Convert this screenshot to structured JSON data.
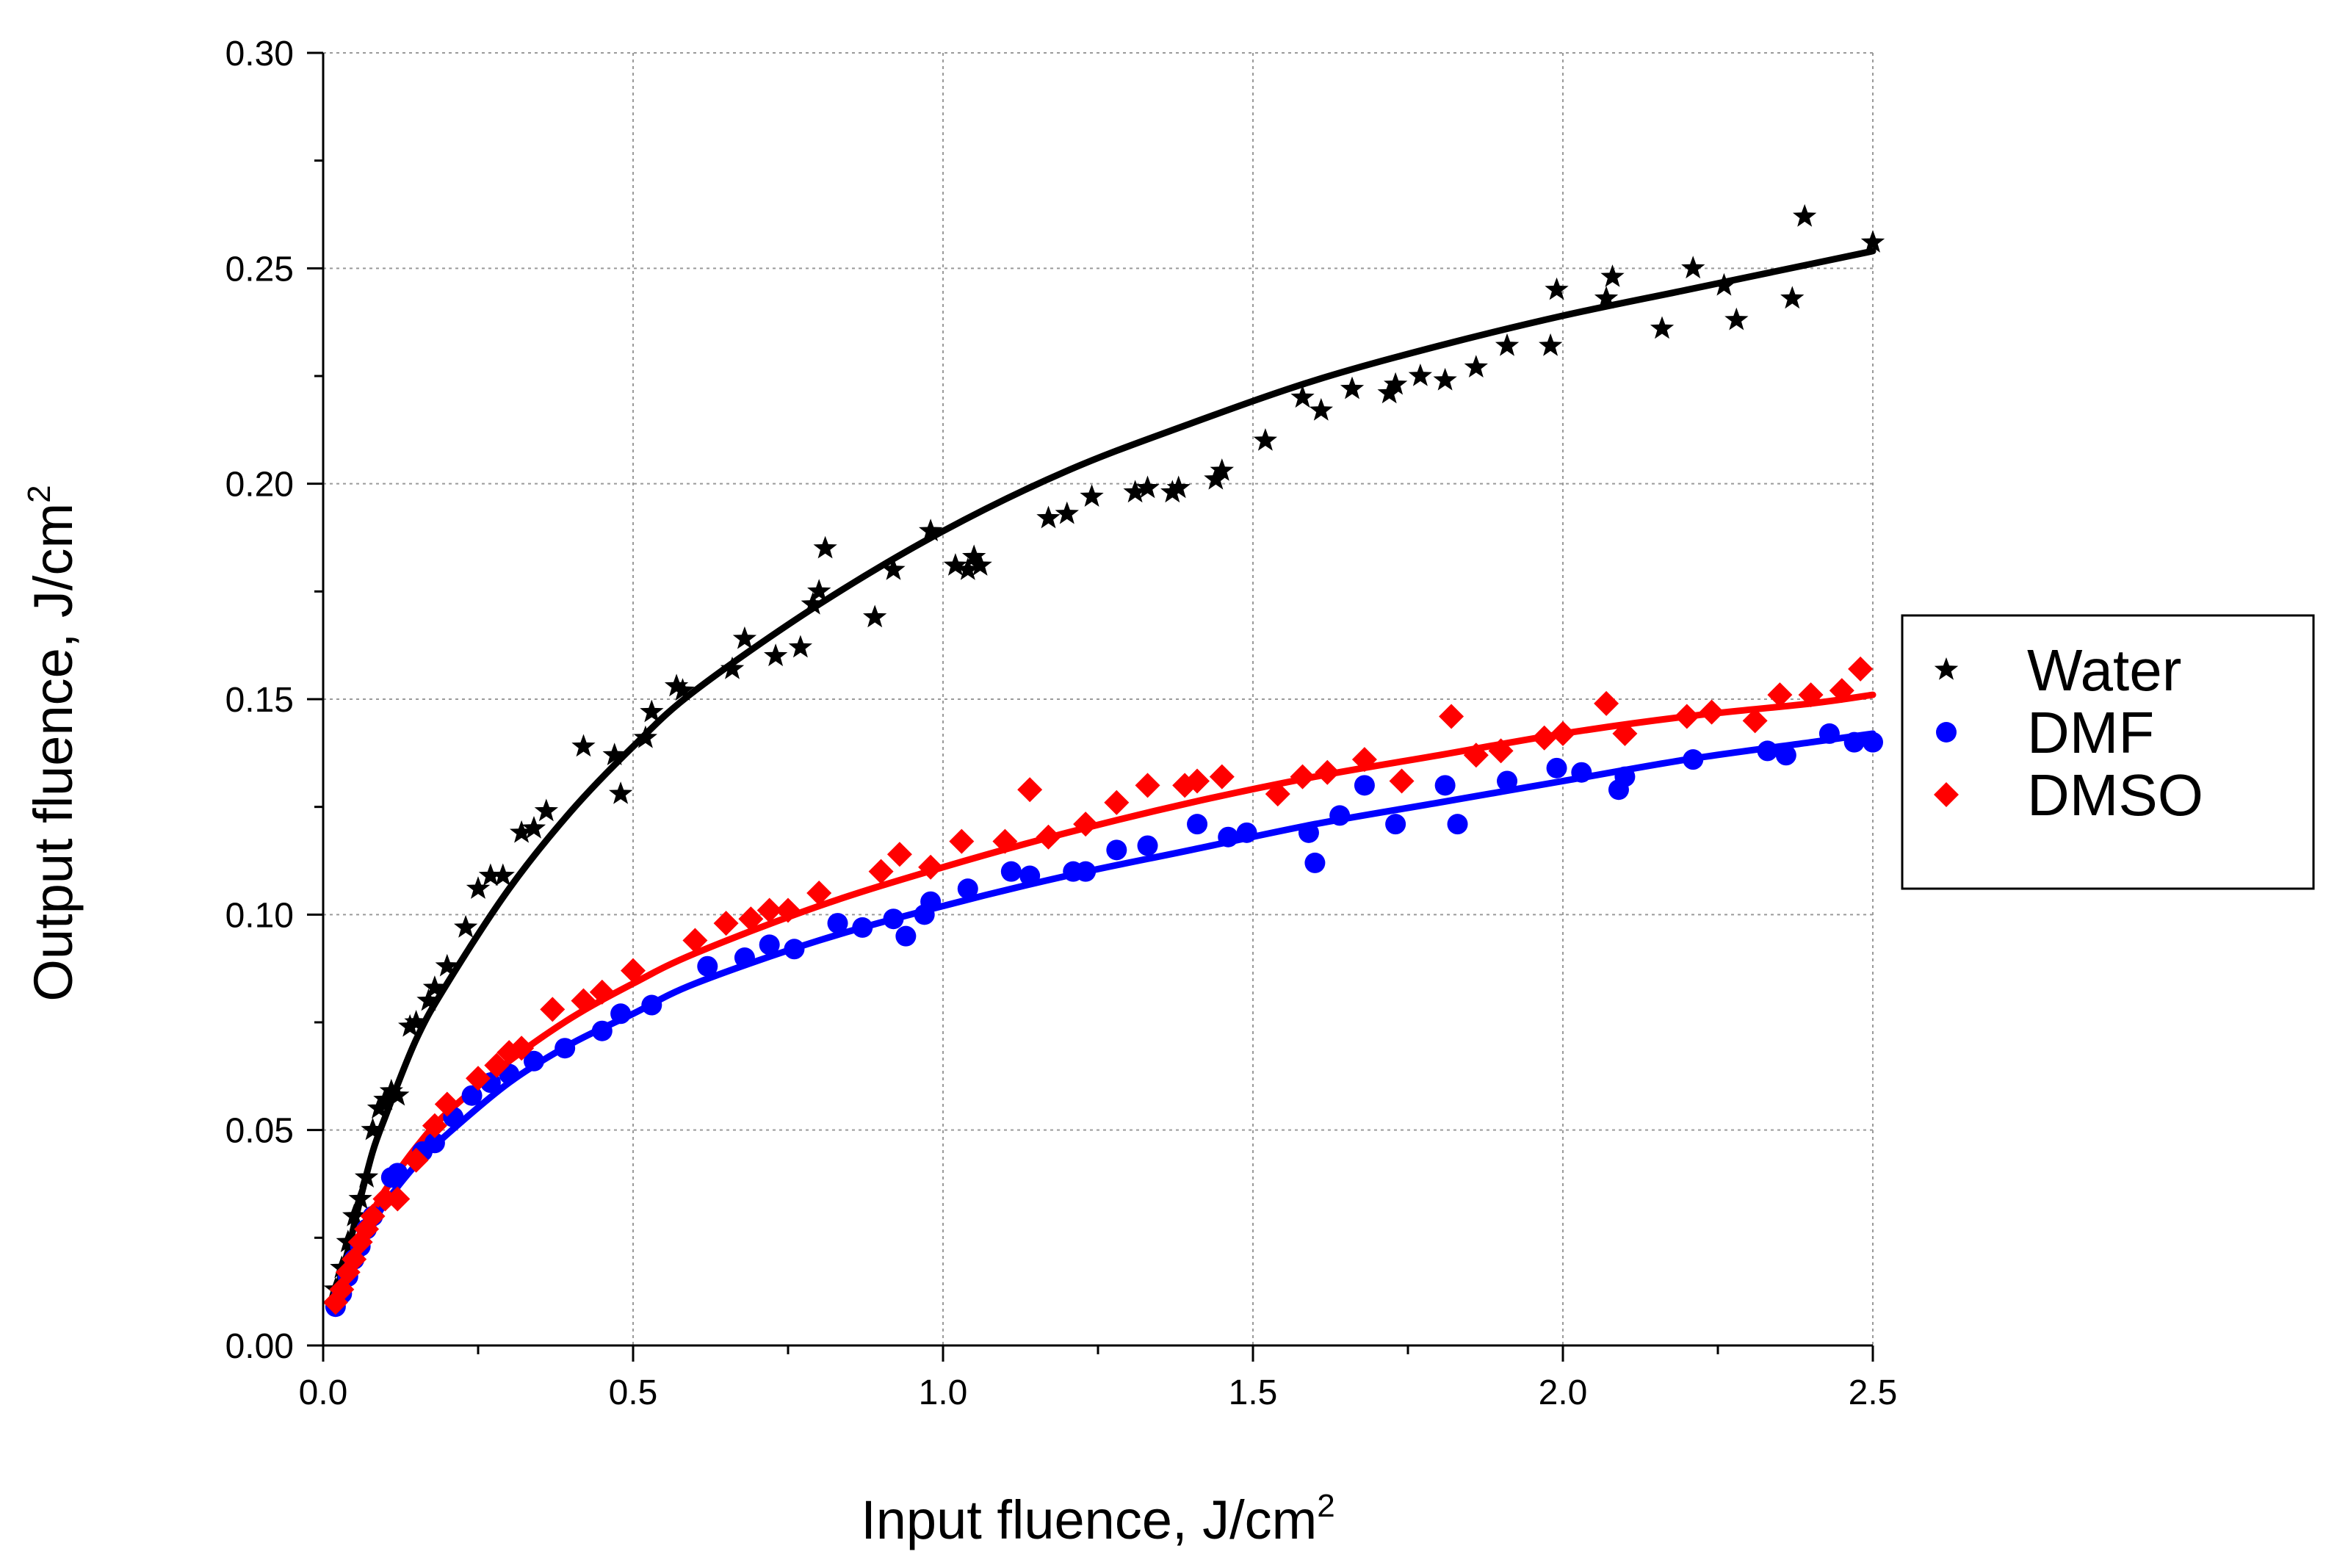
{
  "chart_data": {
    "type": "scatter",
    "xlabel": "Input fluence, J/cm",
    "xlabel_sup": "2",
    "ylabel": "Output fluence,  J/cm",
    "ylabel_sup": "2",
    "xlim": [
      0,
      2.5
    ],
    "ylim": [
      0,
      0.3
    ],
    "x_ticks": [
      "0.0",
      "0.5",
      "1.0",
      "1.5",
      "2.0",
      "2.5"
    ],
    "y_ticks": [
      "0.00",
      "0.05",
      "0.10",
      "0.15",
      "0.20",
      "0.25",
      "0.30"
    ],
    "grid": true,
    "legend_position": "right",
    "series": [
      {
        "name": "Water",
        "marker": "star",
        "color": "#000000",
        "fit": "power",
        "x": [
          0.02,
          0.03,
          0.04,
          0.05,
          0.06,
          0.07,
          0.08,
          0.09,
          0.1,
          0.11,
          0.12,
          0.14,
          0.15,
          0.17,
          0.18,
          0.2,
          0.23,
          0.25,
          0.27,
          0.29,
          0.32,
          0.34,
          0.36,
          0.42,
          0.47,
          0.48,
          0.52,
          0.53,
          0.57,
          0.58,
          0.66,
          0.68,
          0.73,
          0.77,
          0.79,
          0.8,
          0.81,
          0.89,
          0.92,
          0.98,
          1.02,
          1.04,
          1.05,
          1.06,
          1.17,
          1.2,
          1.24,
          1.31,
          1.33,
          1.37,
          1.38,
          1.44,
          1.45,
          1.52,
          1.58,
          1.61,
          1.66,
          1.72,
          1.73,
          1.77,
          1.81,
          1.86,
          1.91,
          1.98,
          1.99,
          2.07,
          2.08,
          2.16,
          2.21,
          2.26,
          2.28,
          2.37,
          2.39,
          2.5
        ],
        "y": [
          0.013,
          0.018,
          0.024,
          0.03,
          0.034,
          0.039,
          0.05,
          0.055,
          0.057,
          0.059,
          0.058,
          0.074,
          0.075,
          0.08,
          0.083,
          0.088,
          0.097,
          0.106,
          0.109,
          0.109,
          0.119,
          0.12,
          0.124,
          0.139,
          0.137,
          0.128,
          0.141,
          0.147,
          0.153,
          0.152,
          0.157,
          0.164,
          0.16,
          0.162,
          0.172,
          0.175,
          0.185,
          0.169,
          0.18,
          0.189,
          0.181,
          0.18,
          0.183,
          0.181,
          0.192,
          0.193,
          0.197,
          0.198,
          0.199,
          0.198,
          0.199,
          0.201,
          0.203,
          0.21,
          0.22,
          0.217,
          0.222,
          0.221,
          0.223,
          0.225,
          0.224,
          0.227,
          0.232,
          0.232,
          0.245,
          0.243,
          0.248,
          0.236,
          0.25,
          0.246,
          0.238,
          0.243,
          0.262,
          0.256
        ],
        "fit_x": [
          0.02,
          0.04,
          0.06,
          0.08,
          0.1,
          0.15,
          0.2,
          0.3,
          0.4,
          0.5,
          0.6,
          0.8,
          1.0,
          1.2,
          1.4,
          1.6,
          1.8,
          2.0,
          2.2,
          2.4,
          2.5
        ],
        "fit_y": [
          0.012,
          0.022,
          0.034,
          0.045,
          0.053,
          0.071,
          0.084,
          0.106,
          0.124,
          0.139,
          0.152,
          0.172,
          0.189,
          0.203,
          0.214,
          0.224,
          0.232,
          0.239,
          0.245,
          0.251,
          0.254
        ]
      },
      {
        "name": "DMF",
        "marker": "circle",
        "color": "#0000ff",
        "fit": "power",
        "x": [
          0.02,
          0.03,
          0.04,
          0.05,
          0.06,
          0.07,
          0.08,
          0.11,
          0.12,
          0.16,
          0.18,
          0.21,
          0.24,
          0.27,
          0.3,
          0.34,
          0.39,
          0.45,
          0.48,
          0.53,
          0.62,
          0.68,
          0.72,
          0.76,
          0.83,
          0.87,
          0.92,
          0.94,
          0.97,
          0.98,
          1.04,
          1.11,
          1.14,
          1.21,
          1.23,
          1.28,
          1.33,
          1.41,
          1.46,
          1.49,
          1.59,
          1.6,
          1.64,
          1.68,
          1.73,
          1.81,
          1.83,
          1.91,
          1.99,
          2.03,
          2.09,
          2.1,
          2.21,
          2.33,
          2.36,
          2.43,
          2.47,
          2.5
        ],
        "y": [
          0.009,
          0.012,
          0.016,
          0.02,
          0.023,
          0.027,
          0.03,
          0.039,
          0.04,
          0.045,
          0.047,
          0.053,
          0.058,
          0.061,
          0.063,
          0.066,
          0.069,
          0.073,
          0.077,
          0.079,
          0.088,
          0.09,
          0.093,
          0.092,
          0.098,
          0.097,
          0.099,
          0.095,
          0.1,
          0.103,
          0.106,
          0.11,
          0.109,
          0.11,
          0.11,
          0.115,
          0.116,
          0.121,
          0.118,
          0.119,
          0.119,
          0.112,
          0.123,
          0.13,
          0.121,
          0.13,
          0.121,
          0.131,
          0.134,
          0.133,
          0.129,
          0.132,
          0.136,
          0.138,
          0.137,
          0.142,
          0.14,
          0.14
        ],
        "fit_x": [
          0.02,
          0.04,
          0.06,
          0.08,
          0.1,
          0.15,
          0.2,
          0.3,
          0.4,
          0.5,
          0.6,
          0.8,
          1.0,
          1.2,
          1.4,
          1.6,
          1.8,
          2.0,
          2.2,
          2.4,
          2.5
        ],
        "fit_y": [
          0.01,
          0.016,
          0.022,
          0.028,
          0.033,
          0.042,
          0.049,
          0.061,
          0.07,
          0.077,
          0.084,
          0.094,
          0.102,
          0.109,
          0.115,
          0.121,
          0.126,
          0.131,
          0.136,
          0.14,
          0.142
        ]
      },
      {
        "name": "DMSO",
        "marker": "diamond",
        "color": "#ff0000",
        "fit": "power",
        "x": [
          0.02,
          0.03,
          0.04,
          0.05,
          0.06,
          0.07,
          0.08,
          0.1,
          0.12,
          0.15,
          0.18,
          0.2,
          0.25,
          0.28,
          0.3,
          0.32,
          0.37,
          0.42,
          0.45,
          0.5,
          0.6,
          0.65,
          0.69,
          0.72,
          0.75,
          0.8,
          0.9,
          0.93,
          0.98,
          1.03,
          1.1,
          1.14,
          1.17,
          1.23,
          1.28,
          1.33,
          1.39,
          1.41,
          1.45,
          1.54,
          1.58,
          1.62,
          1.68,
          1.74,
          1.82,
          1.86,
          1.9,
          1.97,
          2.0,
          2.07,
          2.1,
          2.2,
          2.24,
          2.31,
          2.35,
          2.4,
          2.45,
          2.48
        ],
        "y": [
          0.01,
          0.013,
          0.017,
          0.02,
          0.024,
          0.027,
          0.03,
          0.034,
          0.034,
          0.043,
          0.051,
          0.056,
          0.062,
          0.065,
          0.068,
          0.069,
          0.078,
          0.08,
          0.082,
          0.087,
          0.094,
          0.098,
          0.099,
          0.101,
          0.101,
          0.105,
          0.11,
          0.114,
          0.111,
          0.117,
          0.117,
          0.129,
          0.118,
          0.121,
          0.126,
          0.13,
          0.13,
          0.131,
          0.132,
          0.128,
          0.132,
          0.133,
          0.136,
          0.131,
          0.146,
          0.137,
          0.138,
          0.141,
          0.142,
          0.149,
          0.142,
          0.146,
          0.147,
          0.145,
          0.151,
          0.151,
          0.152,
          0.157
        ],
        "fit_x": [
          0.02,
          0.04,
          0.06,
          0.08,
          0.1,
          0.15,
          0.2,
          0.3,
          0.4,
          0.5,
          0.6,
          0.8,
          1.0,
          1.2,
          1.4,
          1.6,
          1.8,
          2.0,
          2.2,
          2.4,
          2.5
        ],
        "fit_y": [
          0.011,
          0.018,
          0.025,
          0.031,
          0.036,
          0.046,
          0.054,
          0.066,
          0.076,
          0.084,
          0.091,
          0.102,
          0.111,
          0.119,
          0.126,
          0.132,
          0.137,
          0.142,
          0.146,
          0.149,
          0.151
        ]
      }
    ]
  }
}
